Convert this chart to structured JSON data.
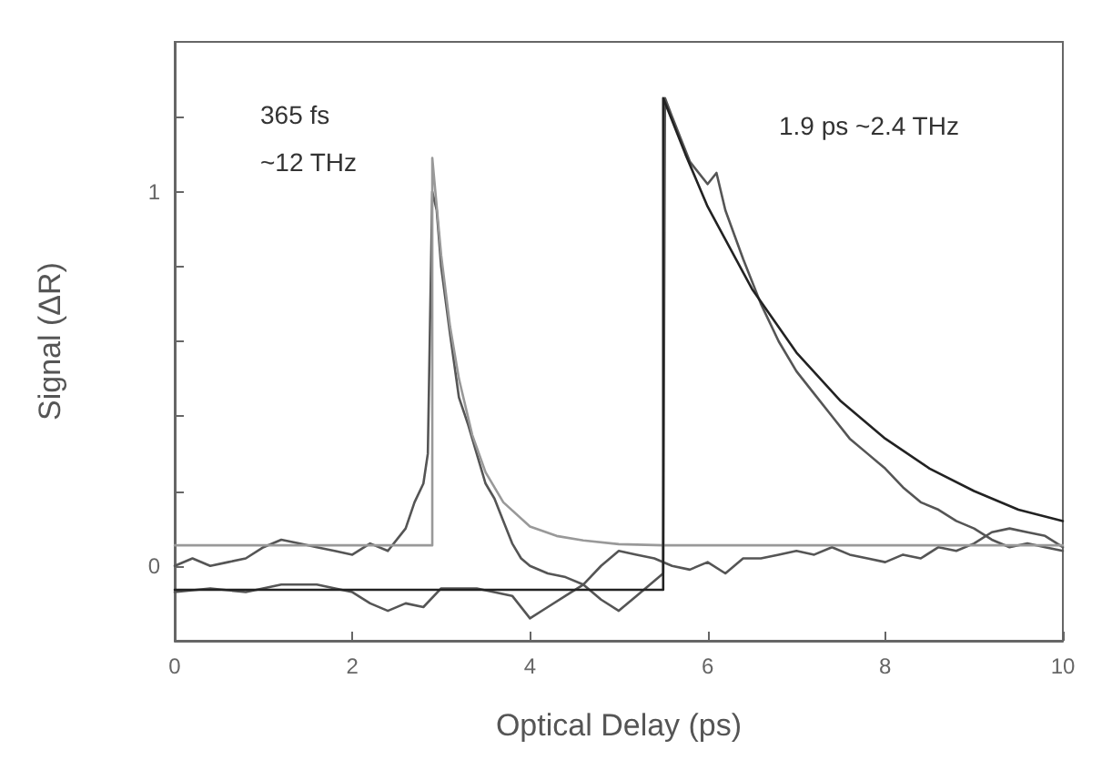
{
  "chart_data": {
    "type": "line",
    "xlabel": "Optical Delay (ps)",
    "ylabel": "Signal (ΔR)",
    "xlim": [
      0,
      10
    ],
    "xticks": [
      0,
      2,
      4,
      6,
      8,
      10
    ],
    "ylim": [
      -0.2,
      1.4
    ],
    "yticks": [
      {
        "value": -0.2,
        "label": null
      },
      0,
      {
        "value": 0.2,
        "label": null
      },
      {
        "value": 0.4,
        "label": null
      },
      {
        "value": 0.6,
        "label": null
      },
      {
        "value": 0.8,
        "label": null
      },
      1,
      {
        "value": 1.2,
        "label": null
      }
    ],
    "grid": false,
    "marker": "none",
    "line_style": "solid",
    "annotations": [
      "365 fs\n~12 THz",
      "1.9 ps ~2.4 THz"
    ],
    "series": [
      {
        "color": "#555555",
        "x": [
          0,
          0.2,
          0.4,
          0.6,
          0.8,
          1.0,
          1.2,
          1.4,
          1.6,
          1.8,
          2.0,
          2.2,
          2.4,
          2.6,
          2.7,
          2.8,
          2.85,
          2.9,
          2.95,
          3.0,
          3.1,
          3.2,
          3.3,
          3.4,
          3.5,
          3.6,
          3.7,
          3.8,
          3.9,
          4.0,
          4.2,
          4.4,
          4.6,
          4.8,
          5.0,
          5.2,
          5.4,
          5.6,
          5.8,
          6.0,
          6.2,
          6.4,
          6.6,
          6.8,
          7.0,
          7.2,
          7.4,
          7.6,
          7.8,
          8.0,
          8.2,
          8.4,
          8.6,
          8.8,
          9.0,
          9.2,
          9.4,
          9.6,
          9.8,
          10
        ],
        "values": [
          0.0,
          0.02,
          0.0,
          0.01,
          0.02,
          0.05,
          0.07,
          0.06,
          0.05,
          0.04,
          0.03,
          0.06,
          0.04,
          0.1,
          0.17,
          0.22,
          0.3,
          1.0,
          0.95,
          0.8,
          0.62,
          0.45,
          0.38,
          0.3,
          0.22,
          0.18,
          0.12,
          0.06,
          0.02,
          0.0,
          -0.02,
          -0.03,
          -0.05,
          0.0,
          0.04,
          0.03,
          0.02,
          0.0,
          -0.01,
          0.01,
          -0.02,
          0.02,
          0.02,
          0.03,
          0.04,
          0.03,
          0.05,
          0.03,
          0.02,
          0.01,
          0.03,
          0.02,
          0.05,
          0.04,
          0.06,
          0.09,
          0.1,
          0.09,
          0.08,
          0.05
        ]
      },
      {
        "color": "#555555",
        "x": [
          0,
          0.4,
          0.8,
          1.2,
          1.6,
          2.0,
          2.2,
          2.4,
          2.6,
          2.8,
          3.0,
          3.4,
          3.8,
          4.0,
          4.2,
          4.4,
          4.6,
          4.8,
          5.0,
          5.2,
          5.4,
          5.5,
          5.52,
          5.6,
          5.8,
          6.0,
          6.1,
          6.2,
          6.4,
          6.6,
          6.8,
          7.0,
          7.2,
          7.4,
          7.6,
          7.8,
          8.0,
          8.2,
          8.4,
          8.6,
          8.8,
          9.0,
          9.2,
          9.4,
          9.6,
          9.8,
          10
        ],
        "values": [
          -0.07,
          -0.06,
          -0.07,
          -0.05,
          -0.05,
          -0.07,
          -0.1,
          -0.12,
          -0.1,
          -0.11,
          -0.06,
          -0.06,
          -0.08,
          -0.14,
          -0.11,
          -0.08,
          -0.05,
          -0.09,
          -0.12,
          -0.08,
          -0.04,
          -0.02,
          1.25,
          1.2,
          1.08,
          1.02,
          1.05,
          0.95,
          0.82,
          0.7,
          0.6,
          0.52,
          0.46,
          0.4,
          0.34,
          0.3,
          0.26,
          0.21,
          0.17,
          0.15,
          0.12,
          0.1,
          0.07,
          0.05,
          0.06,
          0.05,
          0.04
        ]
      },
      {
        "color": "#999999",
        "x": [
          0,
          2.9,
          2.9,
          3.0,
          3.1,
          3.2,
          3.35,
          3.5,
          3.7,
          4.0,
          4.3,
          4.6,
          5.0,
          5.5,
          10
        ],
        "values": [
          0.055,
          0.055,
          1.09,
          0.83,
          0.64,
          0.5,
          0.35,
          0.25,
          0.17,
          0.105,
          0.08,
          0.068,
          0.058,
          0.055,
          0.055
        ]
      },
      {
        "color": "#222222",
        "x": [
          0,
          5.5,
          5.5,
          5.75,
          6,
          6.5,
          7,
          7.5,
          8,
          8.5,
          9,
          9.5,
          10
        ],
        "values": [
          -0.064,
          -0.064,
          1.25,
          1.1,
          0.96,
          0.74,
          0.57,
          0.44,
          0.34,
          0.26,
          0.2,
          0.15,
          0.12
        ]
      }
    ]
  }
}
